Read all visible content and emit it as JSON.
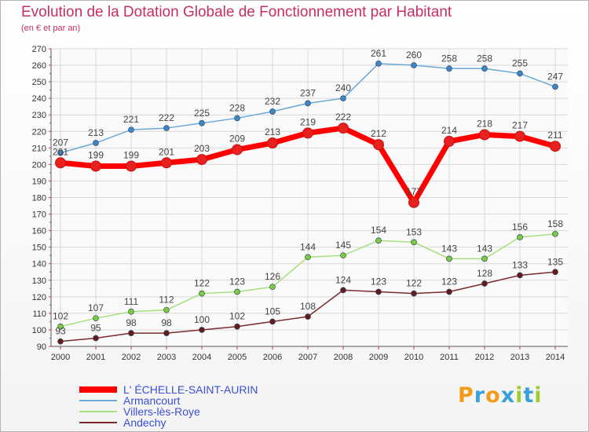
{
  "chart_data": {
    "type": "line",
    "title": "Evolution de la Dotation Globale de Fonctionnement par Habitant",
    "subtitle": "(en € et par an)",
    "xlabel": "",
    "ylabel": "",
    "ylim": [
      90,
      270
    ],
    "y_ticks": [
      "90",
      "100",
      "110",
      "120",
      "130",
      "140",
      "150",
      "160",
      "170",
      "180",
      "190",
      "200",
      "210",
      "220",
      "230",
      "240",
      "250",
      "260",
      "270"
    ],
    "categories": [
      "2000",
      "2001",
      "2002",
      "2003",
      "2004",
      "2005",
      "2006",
      "2007",
      "2008",
      "2009",
      "2010",
      "2011",
      "2012",
      "2013",
      "2014"
    ],
    "series": [
      {
        "name": "L' ÉCHELLE-SAINT-AURIN",
        "color": "#ff0000",
        "point_color": "#e8201e",
        "values": [
          201,
          199,
          199,
          201,
          203,
          209,
          213,
          219,
          222,
          212,
          177,
          214,
          218,
          217,
          211
        ],
        "labels": [
          "201",
          "199",
          "199",
          "201",
          "203",
          "209",
          "213",
          "219",
          "222",
          "212",
          "177",
          "214",
          "218",
          "217",
          "211"
        ]
      },
      {
        "name": "Armancourt",
        "color": "#6aaad8",
        "point_color": "#3f86c4",
        "values": [
          207,
          213,
          221,
          222,
          225,
          228,
          232,
          237,
          240,
          261,
          260,
          258,
          258,
          255,
          247
        ],
        "labels": [
          "207",
          "213",
          "221",
          "222",
          "225",
          "228",
          "232",
          "237",
          "240",
          "261",
          "260",
          "258",
          "258",
          "255",
          "247"
        ]
      },
      {
        "name": "Villers-lès-Roye",
        "color": "#a8df7e",
        "point_color": "#7ccc3c",
        "values": [
          102,
          107,
          111,
          112,
          122,
          123,
          126,
          144,
          145,
          154,
          153,
          143,
          143,
          156,
          158
        ],
        "labels": [
          "102",
          "107",
          "111",
          "112",
          "122",
          "123",
          "126",
          "144",
          "145",
          "154",
          "153",
          "143",
          "143",
          "156",
          "158"
        ]
      },
      {
        "name": "Andechy",
        "color": "#7b2b2b",
        "point_color": "#661a1a",
        "values": [
          93,
          95,
          98,
          98,
          100,
          102,
          105,
          108,
          124,
          123,
          122,
          123,
          128,
          133,
          135
        ],
        "labels": [
          "93",
          "95",
          "98",
          "98",
          "100",
          "102",
          "105",
          "108",
          "124",
          "123",
          "122",
          "123",
          "128",
          "133",
          "135"
        ]
      }
    ],
    "legend_position": "bottom-left",
    "grid": true
  },
  "logo": {
    "letters": [
      "P",
      "r",
      "o",
      "x",
      "i",
      "t",
      "i"
    ],
    "colors": [
      "#f39b1b",
      "#3aa0d8",
      "#f39b1b",
      "#3aa0d8",
      "#9fcd2f",
      "#3aa0d8",
      "#9fcd2f"
    ]
  }
}
